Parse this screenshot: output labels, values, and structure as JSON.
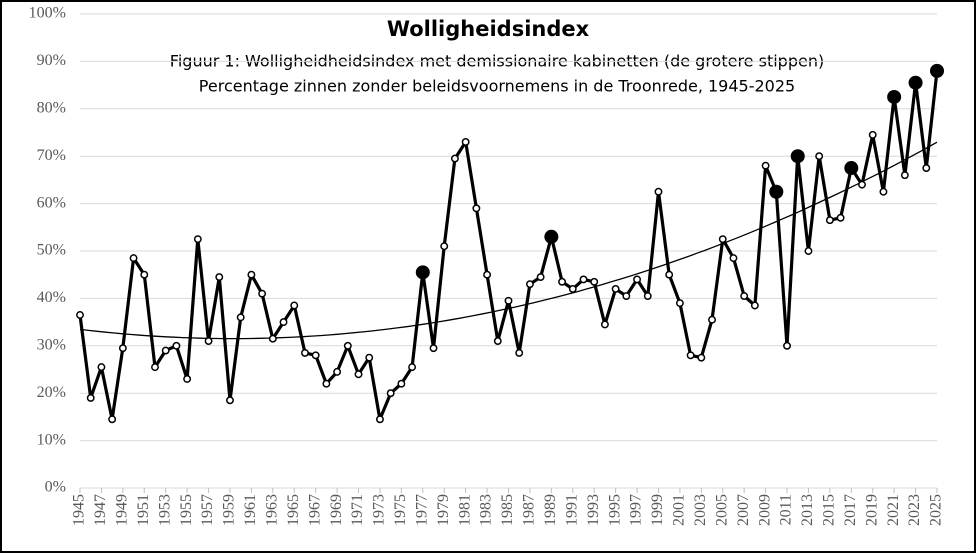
{
  "chart_data": {
    "type": "line",
    "title": "Wolligheidsindex",
    "subtitle": [
      "Figuur 1: Wolligheidheidsindex met demissionaire kabinetten (de grotere stippen)",
      "Percentage zinnen zonder beleidsvoornemens in de Troonrede, 1945-2025"
    ],
    "x": [
      1945,
      1946,
      1947,
      1948,
      1949,
      1950,
      1951,
      1952,
      1953,
      1954,
      1955,
      1956,
      1957,
      1958,
      1959,
      1960,
      1961,
      1962,
      1963,
      1964,
      1965,
      1966,
      1967,
      1968,
      1969,
      1970,
      1971,
      1972,
      1973,
      1974,
      1975,
      1976,
      1977,
      1978,
      1979,
      1980,
      1981,
      1982,
      1983,
      1984,
      1985,
      1986,
      1987,
      1988,
      1989,
      1990,
      1991,
      1992,
      1993,
      1994,
      1995,
      1996,
      1997,
      1998,
      1999,
      2000,
      2001,
      2002,
      2003,
      2004,
      2005,
      2006,
      2007,
      2008,
      2009,
      2010,
      2011,
      2012,
      2013,
      2014,
      2015,
      2016,
      2017,
      2018,
      2019,
      2020,
      2021,
      2022,
      2023,
      2024,
      2025
    ],
    "series": [
      {
        "color": "#000000",
        "values": [
          36.5,
          19,
          25.5,
          14.5,
          29.5,
          48.5,
          45,
          25.5,
          29,
          30,
          23,
          52.5,
          31,
          44.5,
          18.5,
          36,
          45,
          41,
          31.5,
          35,
          38.5,
          28.5,
          28,
          22,
          24.5,
          30,
          24,
          27.5,
          14.5,
          20,
          22,
          25.5,
          45.5,
          29.5,
          51,
          69.5,
          73,
          59,
          45,
          31,
          39.5,
          28.5,
          43,
          44.5,
          53,
          43.5,
          42,
          44,
          43.5,
          34.5,
          42,
          40.5,
          44,
          40.5,
          62.5,
          45,
          39,
          28,
          27.5,
          35.5,
          52.5,
          48.5,
          40.5,
          38.5,
          68,
          62.5,
          30,
          70,
          50,
          70,
          56.5,
          57,
          67.5,
          64,
          74.5,
          62.5,
          82.5,
          66,
          85.5,
          67.5,
          88
        ]
      },
      {
        "color": "#000000",
        "values": [
          null,
          null,
          null,
          null,
          null,
          null,
          null,
          null,
          null,
          null,
          null,
          null,
          null,
          null,
          null,
          null,
          null,
          null,
          null,
          null,
          null,
          null,
          null,
          null,
          null,
          null,
          null,
          null,
          null,
          null,
          null,
          null,
          45.5,
          null,
          null,
          null,
          null,
          null,
          null,
          null,
          null,
          null,
          null,
          null,
          53,
          null,
          null,
          null,
          null,
          null,
          null,
          null,
          null,
          null,
          null,
          null,
          null,
          null,
          null,
          null,
          null,
          null,
          null,
          null,
          null,
          62.5,
          null,
          70,
          null,
          null,
          null,
          null,
          67.5,
          null,
          null,
          null,
          82.5,
          null,
          85.5,
          null,
          88
        ]
      }
    ],
    "trendline": {
      "type": "polynomial",
      "order": 2
    },
    "xlim": [
      1945,
      2025
    ],
    "xticks": [
      1945,
      1947,
      1949,
      1951,
      1953,
      1955,
      1957,
      1959,
      1961,
      1963,
      1965,
      1967,
      1969,
      1971,
      1973,
      1975,
      1977,
      1979,
      1981,
      1983,
      1985,
      1987,
      1989,
      1991,
      1993,
      1995,
      1997,
      1999,
      2001,
      2003,
      2005,
      2007,
      2009,
      2011,
      2013,
      2015,
      2017,
      2019,
      2021,
      2023,
      2025
    ],
    "ylim": [
      0,
      100
    ],
    "yticks": [
      {
        "value": 0,
        "label": "0%"
      },
      {
        "value": 10,
        "label": "10%"
      },
      {
        "value": 20,
        "label": "20%"
      },
      {
        "value": 30,
        "label": "30%"
      },
      {
        "value": 40,
        "label": "40%"
      },
      {
        "value": 50,
        "label": "50%"
      },
      {
        "value": 60,
        "label": "60%"
      },
      {
        "value": 70,
        "label": "70%"
      },
      {
        "value": 80,
        "label": "80%"
      },
      {
        "value": 90,
        "label": "90%"
      },
      {
        "value": 100,
        "label": "100%"
      }
    ],
    "grid": true
  }
}
